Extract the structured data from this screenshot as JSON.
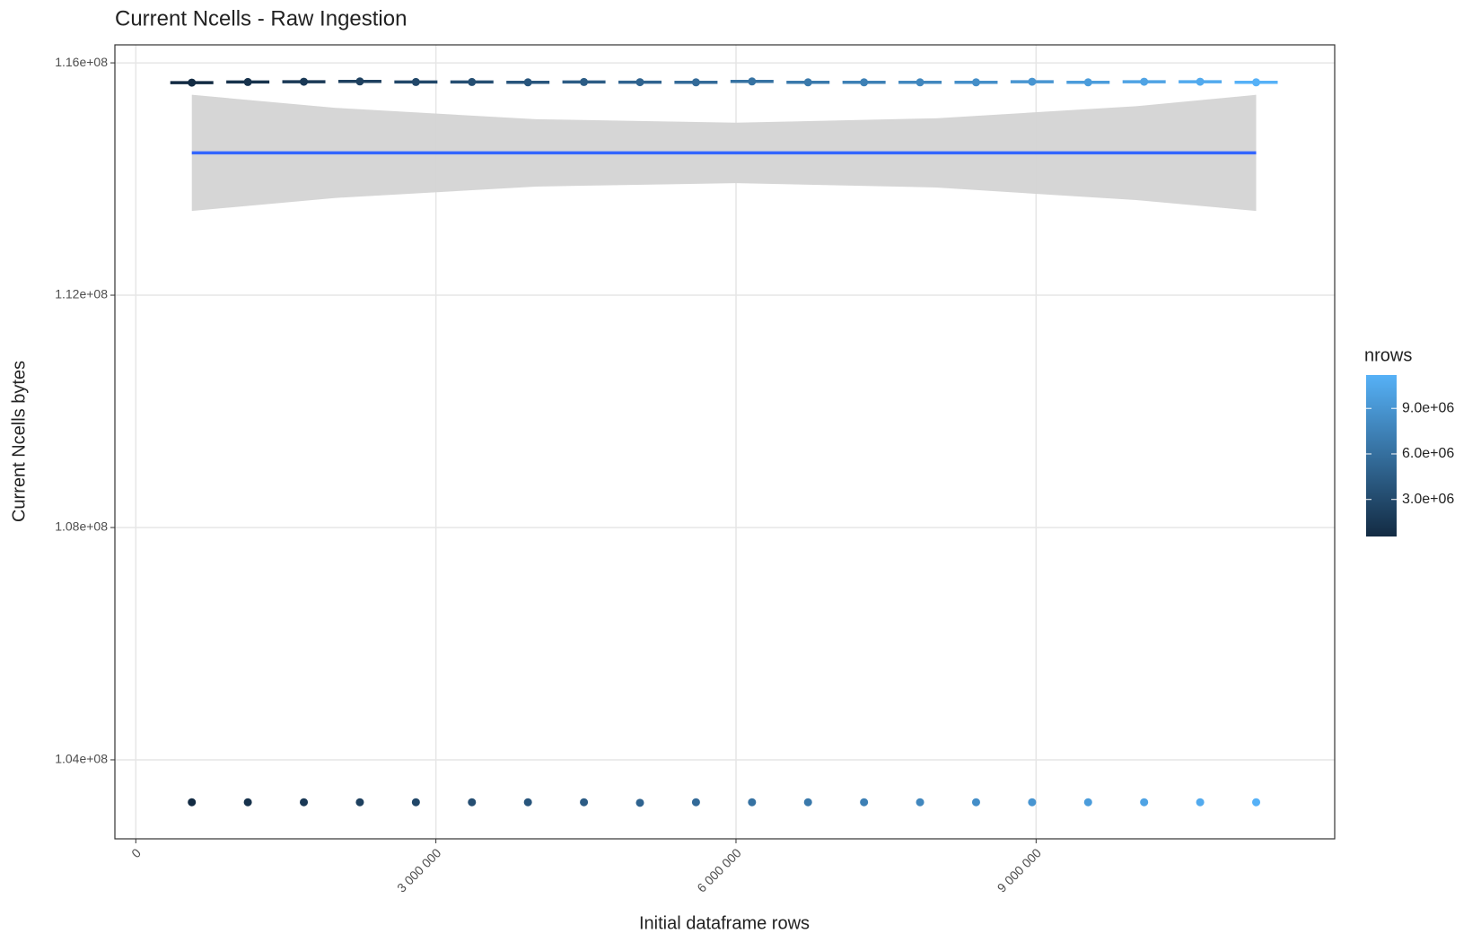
{
  "chart_data": {
    "type": "scatter",
    "title": "Current Ncells - Raw Ingestion",
    "x_label": "Initial dataframe rows",
    "y_label": "Current Ncells bytes",
    "x": [
      560000,
      1120000,
      1680000,
      2240000,
      2800000,
      3360000,
      3920000,
      4480000,
      5040000,
      5600000,
      6160000,
      6720000,
      7280000,
      7840000,
      8400000,
      8960000,
      9520000,
      10080000,
      10640000,
      11200000
    ],
    "series": [
      {
        "values": [
          115660000,
          115670000,
          115675000,
          115680000,
          115670000,
          115670000,
          115665000,
          115670000,
          115668000,
          115665000,
          115680000,
          115665000,
          115665000,
          115665000,
          115665000,
          115675000,
          115665000,
          115675000,
          115675000,
          115665000
        ]
      },
      {
        "values": [
          103270000,
          103270000,
          103270000,
          103270000,
          103270000,
          103270000,
          103270000,
          103270000,
          103260000,
          103270000,
          103270000,
          103270000,
          103270000,
          103270000,
          103270000,
          103270000,
          103270000,
          103270000,
          103270000,
          103270000
        ]
      }
    ],
    "smooth": {
      "color": "#3366FF",
      "band_color": "#d4d4d4",
      "x": [
        560000,
        2000000,
        4000000,
        6000000,
        8000000,
        10000000,
        11200000
      ],
      "values": [
        114450000,
        114450000,
        114450000,
        114450000,
        114450000,
        114450000,
        114450000
      ],
      "lower": [
        113450000,
        113675000,
        113870000,
        113930000,
        113854000,
        113637000,
        113450000
      ],
      "upper": [
        115450000,
        115225000,
        115030000,
        114970000,
        115046000,
        115253000,
        115450000
      ]
    },
    "xlim": [
      -209000,
      11985000
    ],
    "ylim": [
      102640000,
      116310000
    ],
    "xticks": [
      0,
      {
        "value": 3000000,
        "label": "3 000 000"
      },
      {
        "value": 6000000,
        "label": "6 000 000"
      },
      {
        "value": 9000000,
        "label": "9 000 000"
      }
    ],
    "yticks": [
      {
        "value": 104000000,
        "label": "1.04e+08"
      },
      {
        "value": 108000000,
        "label": "1.08e+08"
      },
      {
        "value": 112000000,
        "label": "1.12e+08"
      },
      {
        "value": 116000000,
        "label": "1.16e+08"
      }
    ],
    "grid": true,
    "color_scale": {
      "title": "nrows",
      "low": "#132B43",
      "high": "#56B1F7",
      "lim": [
        560000,
        11200000
      ],
      "ticks": [
        {
          "value": 3000000,
          "label": "3.0e+06"
        },
        {
          "value": 6000000,
          "label": "6.0e+06"
        },
        {
          "value": 9000000,
          "label": "9.0e+06"
        }
      ]
    }
  }
}
